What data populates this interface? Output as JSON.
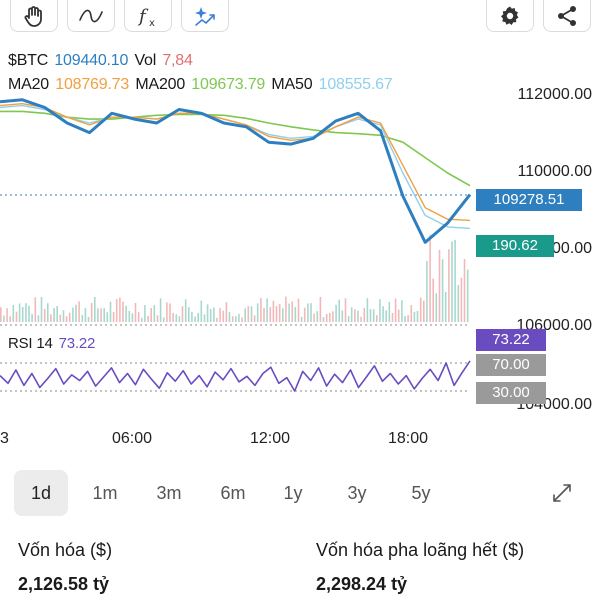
{
  "toolbar": {
    "icons": [
      "hand-icon",
      "wave-icon",
      "function-icon",
      "sparkle-icon"
    ],
    "right_icons": [
      "gear-icon",
      "share-icon"
    ]
  },
  "legend": {
    "symbol": "$BTC",
    "price": "109440.10",
    "vol_label": "Vol",
    "vol_value": "7,84",
    "ma20_label": "MA20",
    "ma20_value": "108769.73",
    "ma200_label": "MA200",
    "ma200_value": "109673.79",
    "ma50_label": "MA50",
    "ma50_value": "108555.67",
    "rsi_label": "RSI 14",
    "rsi_value": "73.22"
  },
  "colors": {
    "price": "#2e7fbf",
    "ma20": "#f0a040",
    "ma200": "#7ec850",
    "ma50": "#8fd0ee",
    "vol": "#e07070",
    "rsi": "#6a4cc0",
    "badge_price": "#2e7fbf",
    "badge_vol": "#1a9a8a",
    "badge_rsi": "#6a4cc0",
    "badge_level": "#9a9a9a"
  },
  "badges": {
    "price": "109278.51",
    "volume": "190.62",
    "rsi": "73.22",
    "rsi_upper": "70.00",
    "rsi_lower": "30.00"
  },
  "price_axis": [
    "112000.00",
    "110000.00",
    "108000.00",
    "106000.00",
    "104000.00"
  ],
  "time_axis": [
    "3",
    "06:00",
    "12:00",
    "18:00"
  ],
  "ranges": [
    "1d",
    "1m",
    "3m",
    "6m",
    "1y",
    "3y",
    "5y"
  ],
  "active_range": "1d",
  "stats": {
    "market_cap_label": "Vốn hóa ($)",
    "market_cap_value": "2,126.58 tỷ",
    "fdv_label": "Vốn hóa pha loãng hết ($)",
    "fdv_value": "2,298.24 tỷ"
  },
  "chart_data": {
    "type": "line",
    "x_label_ticks": [
      "06:00",
      "12:00",
      "18:00"
    ],
    "price_range": [
      104000,
      112500
    ],
    "series": [
      {
        "name": "$BTC",
        "x": [
          0,
          1,
          2,
          3,
          4,
          5,
          6,
          7,
          8,
          9,
          10,
          11,
          12,
          13,
          14,
          15,
          16,
          17,
          18,
          19,
          20,
          21
        ],
        "values": [
          111850,
          111900,
          111700,
          111300,
          111050,
          111550,
          111400,
          111300,
          111650,
          111550,
          111300,
          111200,
          110800,
          110750,
          110900,
          111350,
          111550,
          111100,
          109400,
          108200,
          108700,
          109440
        ]
      },
      {
        "name": "MA20",
        "x": [
          0,
          1,
          2,
          3,
          4,
          5,
          6,
          7,
          8,
          9,
          10,
          11,
          12,
          13,
          14,
          15,
          16,
          17,
          18,
          19,
          20,
          21
        ],
        "values": [
          111750,
          111800,
          111700,
          111450,
          111250,
          111450,
          111450,
          111400,
          111550,
          111550,
          111400,
          111250,
          110950,
          110850,
          110900,
          111200,
          111450,
          111300,
          110200,
          109100,
          108800,
          108770
        ]
      },
      {
        "name": "MA200",
        "x": [
          0,
          1,
          2,
          3,
          4,
          5,
          6,
          7,
          8,
          9,
          10,
          11,
          12,
          13,
          14,
          15,
          16,
          17,
          18,
          19,
          20,
          21
        ],
        "values": [
          111600,
          111600,
          111550,
          111450,
          111400,
          111400,
          111450,
          111500,
          111520,
          111520,
          111500,
          111420,
          111300,
          111200,
          111120,
          111050,
          111020,
          110980,
          110800,
          110400,
          110000,
          109670
        ]
      },
      {
        "name": "MA50",
        "x": [
          0,
          1,
          2,
          3,
          4,
          5,
          6,
          7,
          8,
          9,
          10,
          11,
          12,
          13,
          14,
          15,
          16,
          17,
          18,
          19,
          20,
          21
        ],
        "values": [
          111700,
          111750,
          111650,
          111450,
          111300,
          111450,
          111450,
          111400,
          111550,
          111550,
          111400,
          111250,
          111000,
          110900,
          110950,
          111200,
          111400,
          111250,
          110000,
          108900,
          108600,
          108560
        ]
      }
    ],
    "rsi": {
      "name": "RSI 14",
      "upper": 70,
      "lower": 30,
      "values": [
        52,
        41,
        60,
        38,
        55,
        35,
        48,
        62,
        40,
        53,
        45,
        58,
        37,
        50,
        63,
        42,
        55,
        39,
        61,
        47,
        34,
        56,
        44,
        59,
        40,
        52,
        36,
        57,
        46,
        62,
        43,
        51,
        38,
        55,
        64,
        41,
        49,
        30,
        58,
        45,
        63,
        37,
        54,
        42,
        60,
        35,
        50,
        66,
        44,
        55,
        40,
        52,
        33,
        48,
        61,
        45,
        70,
        38,
        56,
        73
      ]
    }
  }
}
